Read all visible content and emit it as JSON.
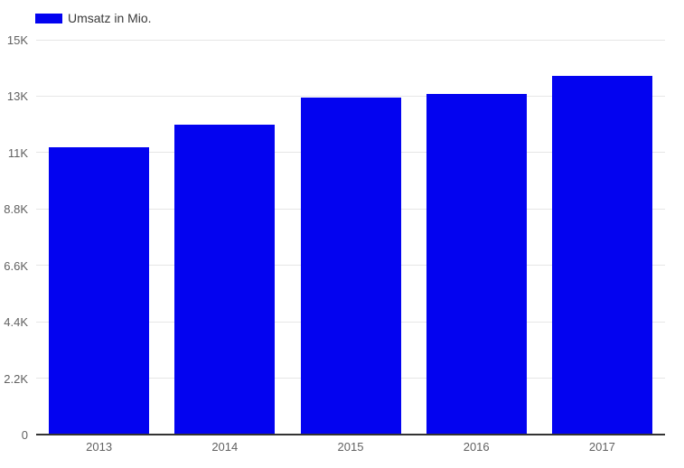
{
  "legend": {
    "position": "top-left",
    "label": "Umsatz in Mio."
  },
  "colors": {
    "bar": "#0303f0",
    "gridline": "#e6e6e6",
    "baseline": "#333333",
    "axis_label": "#616161",
    "legend_text": "#3b3b3b",
    "background": "#ffffff"
  },
  "chart_data": {
    "type": "bar",
    "title": "",
    "categories": [
      "2013",
      "2014",
      "2015",
      "2016",
      "2017"
    ],
    "series": [
      {
        "name": "Umsatz in Mio.",
        "values": [
          11200,
          12100,
          13150,
          13300,
          14000
        ]
      }
    ],
    "xlabel": "",
    "ylabel": "",
    "ylim": [
      0,
      15400
    ],
    "y_ticks": [
      {
        "value": 0,
        "label": "0"
      },
      {
        "value": 2200,
        "label": "2.2K"
      },
      {
        "value": 4400,
        "label": "4.4K"
      },
      {
        "value": 6600,
        "label": "6.6K"
      },
      {
        "value": 8800,
        "label": "8.8K"
      },
      {
        "value": 11000,
        "label": "11K"
      },
      {
        "value": 13200,
        "label": "13K"
      },
      {
        "value": 15400,
        "label": "15K"
      }
    ],
    "grid": true,
    "legend_position": "top-left"
  }
}
